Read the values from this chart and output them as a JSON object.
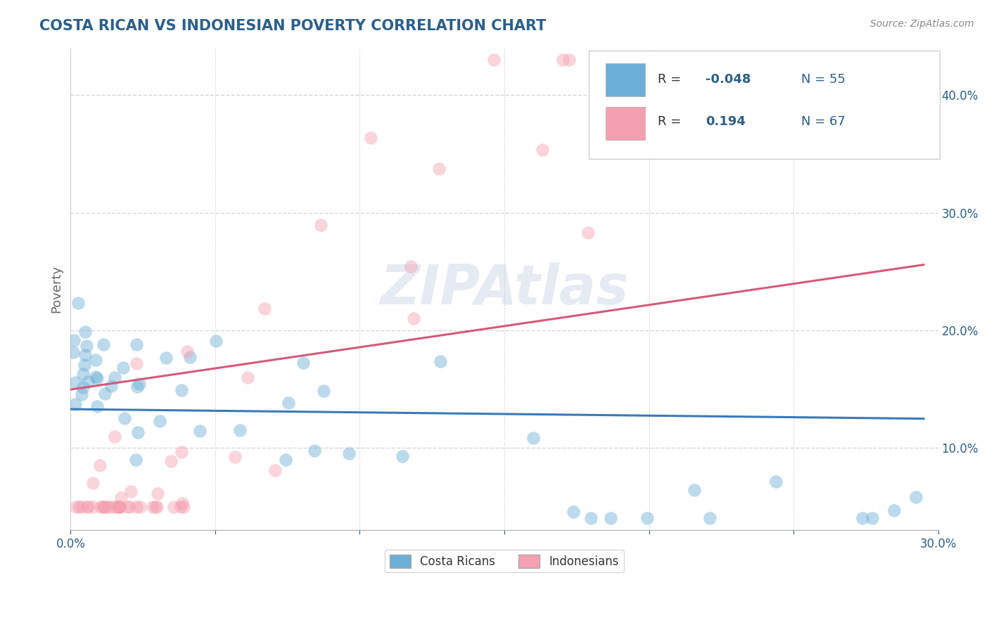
{
  "title": "COSTA RICAN VS INDONESIAN POVERTY CORRELATION CHART",
  "source_text": "Source: ZipAtlas.com",
  "ylabel_label": "Poverty",
  "xlim": [
    0.0,
    0.3
  ],
  "ylim": [
    0.03,
    0.44
  ],
  "xticks": [
    0.0,
    0.05,
    0.1,
    0.15,
    0.2,
    0.25,
    0.3
  ],
  "yticks": [
    0.1,
    0.2,
    0.3,
    0.4
  ],
  "blue_color": "#6baed6",
  "pink_color": "#f4a0b0",
  "blue_line_color": "#3a7ab8",
  "pink_line_color": "#d45a7a",
  "legend_label_blue": "Costa Ricans",
  "legend_label_pink": "Indonesians",
  "watermark": "ZIPAtlas",
  "title_color": "#2c5f8a",
  "axis_label_color": "#666666",
  "tick_color": "#2c5f8a",
  "blue_R": -0.048,
  "pink_R": 0.194,
  "blue_N": 55,
  "pink_N": 67,
  "blue_seed": 42,
  "pink_seed": 123,
  "dot_size": 180,
  "dot_alpha": 0.45,
  "grid_color": "#cccccc",
  "grid_alpha": 0.8
}
